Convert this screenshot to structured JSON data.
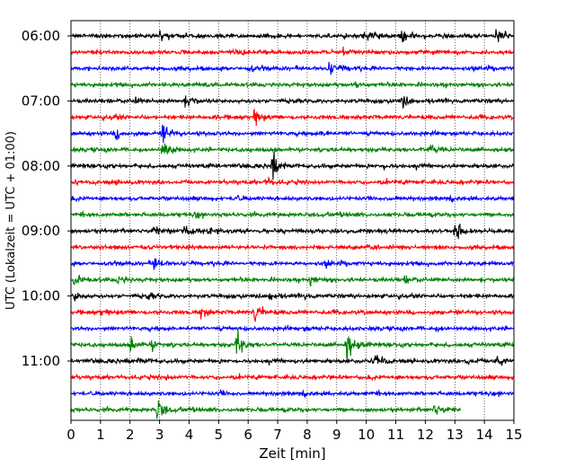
{
  "chart_data": {
    "type": "line",
    "title": "",
    "xlabel": "Zeit  [min]",
    "ylabel": "UTC (Lokalzeit = UTC + 01:00)",
    "xlim": [
      0,
      15
    ],
    "x_ticks": [
      "0",
      "1",
      "2",
      "3",
      "4",
      "5",
      "6",
      "7",
      "8",
      "9",
      "10",
      "11",
      "12",
      "13",
      "14",
      "15"
    ],
    "y_tick_labels": [
      "06:00",
      "07:00",
      "08:00",
      "09:00",
      "10:00",
      "11:00"
    ],
    "grid": "vertical dotted at each minute",
    "trace_interval_minutes": 15,
    "color_cycle": [
      "#000000",
      "#ff0000",
      "#0000ff",
      "#008000"
    ],
    "traces": [
      {
        "start": "06:00",
        "end_min": 15,
        "events": [
          [
            3.0,
            0.35
          ],
          [
            10.1,
            0.4
          ],
          [
            11.2,
            0.6
          ],
          [
            14.4,
            0.7
          ],
          [
            9.9,
            0.25
          ]
        ]
      },
      {
        "start": "06:15",
        "end_min": 15,
        "events": [
          [
            5.8,
            0.15
          ],
          [
            9.2,
            0.15
          ]
        ]
      },
      {
        "start": "06:30",
        "end_min": 15,
        "events": [
          [
            6.0,
            0.25
          ],
          [
            8.7,
            0.45
          ],
          [
            9.2,
            0.15
          ]
        ]
      },
      {
        "start": "06:45",
        "end_min": 15,
        "events": [
          [
            4.5,
            0.2
          ],
          [
            9.6,
            0.25
          ]
        ]
      },
      {
        "start": "07:00",
        "end_min": 15,
        "events": [
          [
            2.1,
            0.2
          ],
          [
            3.8,
            0.25
          ],
          [
            4.0,
            0.25
          ],
          [
            11.2,
            0.5
          ]
        ]
      },
      {
        "start": "07:15",
        "end_min": 15,
        "events": [
          [
            6.2,
            0.6
          ],
          [
            1.4,
            0.15
          ]
        ]
      },
      {
        "start": "07:30",
        "end_min": 15,
        "events": [
          [
            1.5,
            0.45
          ],
          [
            3.1,
            0.7
          ],
          [
            8.5,
            0.2
          ]
        ]
      },
      {
        "start": "07:45",
        "end_min": 15,
        "events": [
          [
            3.1,
            1.0
          ],
          [
            12.1,
            0.6
          ]
        ]
      },
      {
        "start": "08:00",
        "end_min": 15,
        "events": [
          [
            6.8,
            1.0
          ],
          [
            10.6,
            0.15
          ]
        ]
      },
      {
        "start": "08:15",
        "end_min": 15,
        "events": [
          [
            6.6,
            0.25
          ],
          [
            1.5,
            0.12
          ]
        ]
      },
      {
        "start": "08:30",
        "end_min": 15,
        "events": [
          [
            5.5,
            0.15
          ],
          [
            10.8,
            0.12
          ]
        ]
      },
      {
        "start": "08:45",
        "end_min": 15,
        "events": [
          [
            9.0,
            0.2
          ],
          [
            4.2,
            0.15
          ]
        ]
      },
      {
        "start": "09:00",
        "end_min": 15,
        "events": [
          [
            3.8,
            0.45
          ],
          [
            2.8,
            0.3
          ],
          [
            13.0,
            0.8
          ],
          [
            4.7,
            0.25
          ]
        ]
      },
      {
        "start": "09:15",
        "end_min": 15,
        "events": [
          [
            10.1,
            0.15
          ],
          [
            3.9,
            0.15
          ]
        ]
      },
      {
        "start": "09:30",
        "end_min": 15,
        "events": [
          [
            2.8,
            0.6
          ],
          [
            8.6,
            0.2
          ]
        ]
      },
      {
        "start": "09:45",
        "end_min": 15,
        "events": [
          [
            0.1,
            0.55
          ],
          [
            1.6,
            0.3
          ],
          [
            8.1,
            0.45
          ],
          [
            11.3,
            0.3
          ]
        ]
      },
      {
        "start": "10:00",
        "end_min": 15,
        "events": [
          [
            0.1,
            0.5
          ],
          [
            6.7,
            0.35
          ],
          [
            2.6,
            0.2
          ],
          [
            7.9,
            0.15
          ]
        ]
      },
      {
        "start": "10:15",
        "end_min": 15,
        "events": [
          [
            4.4,
            0.55
          ],
          [
            6.2,
            0.85
          ],
          [
            1.0,
            0.2
          ]
        ]
      },
      {
        "start": "10:30",
        "end_min": 15,
        "events": [
          [
            7.9,
            0.15
          ],
          [
            12.4,
            0.12
          ]
        ]
      },
      {
        "start": "10:45",
        "end_min": 15,
        "events": [
          [
            2.0,
            0.6
          ],
          [
            2.7,
            0.45
          ],
          [
            5.6,
            1.0
          ],
          [
            9.3,
            1.5
          ]
        ]
      },
      {
        "start": "11:00",
        "end_min": 15,
        "events": [
          [
            10.3,
            0.8
          ],
          [
            2.3,
            0.2
          ],
          [
            13.4,
            0.35
          ],
          [
            14.4,
            0.55
          ]
        ]
      },
      {
        "start": "11:15",
        "end_min": 15,
        "events": [
          [
            3.2,
            0.2
          ]
        ]
      },
      {
        "start": "11:30",
        "end_min": 15,
        "events": [
          [
            5.0,
            0.12
          ]
        ]
      },
      {
        "start": "11:45",
        "end_min": 13.2,
        "events": [
          [
            2.9,
            1.0
          ],
          [
            12.3,
            0.45
          ],
          [
            4.0,
            0.2
          ]
        ]
      }
    ]
  }
}
